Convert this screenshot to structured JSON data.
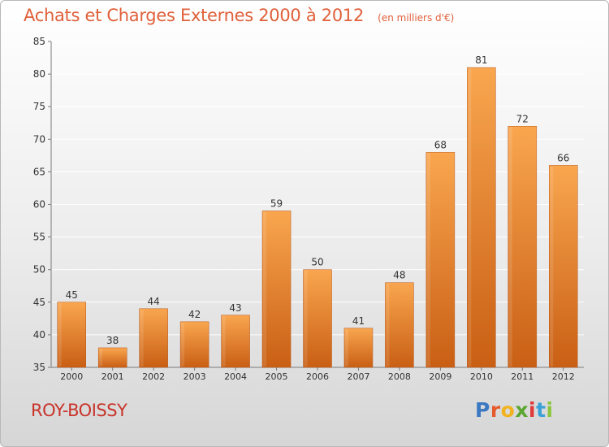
{
  "header": {
    "title": "Achats et Charges Externes 2000 à 2012",
    "subtitle": "(en milliers d'€)"
  },
  "footer": {
    "city": "ROY-BOISSY",
    "brand": {
      "text": "Proxiti",
      "letter_colors": [
        "#3a78c2",
        "#e65b2e",
        "#f2b21f",
        "#5aa631",
        "#e03a3a",
        "#3aa0d8",
        "#8cc63f"
      ]
    }
  },
  "colors": {
    "bar_top": "#f9a64f",
    "bar_bottom": "#c95f14",
    "title": "#e0603a",
    "city": "#c8342a",
    "axis": "#7a7a7a",
    "grid": "#ffffff"
  },
  "chart_data": {
    "type": "bar",
    "categories": [
      "2000",
      "2001",
      "2002",
      "2003",
      "2004",
      "2005",
      "2006",
      "2007",
      "2008",
      "2009",
      "2010",
      "2011",
      "2012"
    ],
    "values": [
      45,
      38,
      44,
      42,
      43,
      59,
      50,
      41,
      48,
      68,
      81,
      72,
      66
    ],
    "title": "Achats et Charges Externes 2000 à 2012",
    "subtitle": "(en milliers d'€)",
    "xlabel": "",
    "ylabel": "",
    "ylim": [
      35,
      85
    ],
    "yticks": [
      35,
      40,
      45,
      50,
      55,
      60,
      65,
      70,
      75,
      80,
      85
    ],
    "data_labels": true,
    "grid": true,
    "legend": "none"
  }
}
